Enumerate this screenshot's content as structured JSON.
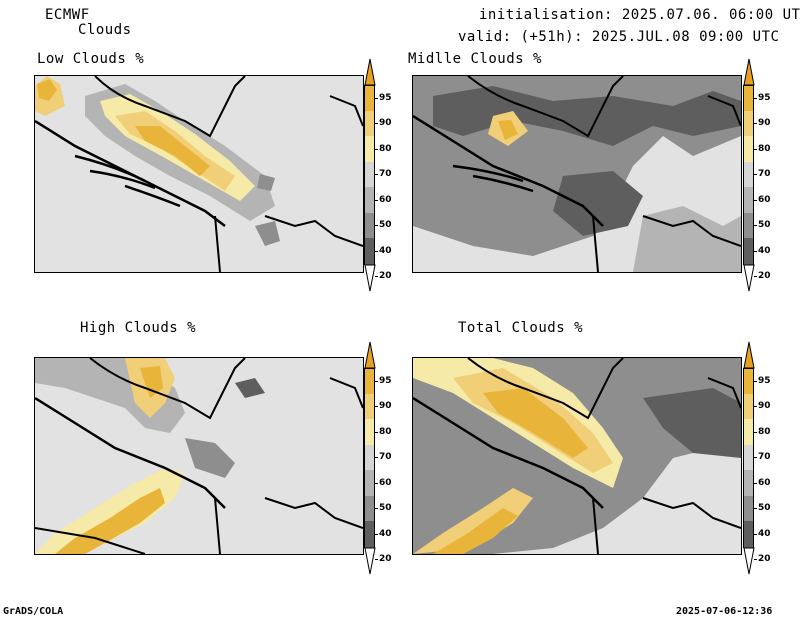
{
  "header": {
    "model": "ECMWF",
    "product": "Clouds",
    "initialisation": "initialisation: 2025.07.06. 06:00 UTC",
    "valid": "valid: (+51h): 2025.JUL.08 09:00 UTC"
  },
  "panels": [
    {
      "key": "low",
      "title": "Low Clouds %"
    },
    {
      "key": "middle",
      "title": "Midlle Clouds %"
    },
    {
      "key": "high",
      "title": "High Clouds %"
    },
    {
      "key": "total",
      "title": "Total Clouds %"
    }
  ],
  "colorbar": {
    "levels": [
      "95",
      "90",
      "80",
      "70",
      "60",
      "50",
      "40",
      "20"
    ],
    "colors": {
      "above_95": "#e8a020",
      "90_95": "#e9b43a",
      "80_90": "#f0cf78",
      "70_80": "#f5eaa8",
      "60_70": "#d6d6d6",
      "50_60": "#b4b4b4",
      "40_50": "#8e8e8e",
      "20_40": "#5e5e5e",
      "below_20": "#ffffff"
    }
  },
  "footer": {
    "left": "GrADS/COLA",
    "right": "2025-07-06-12:36"
  }
}
